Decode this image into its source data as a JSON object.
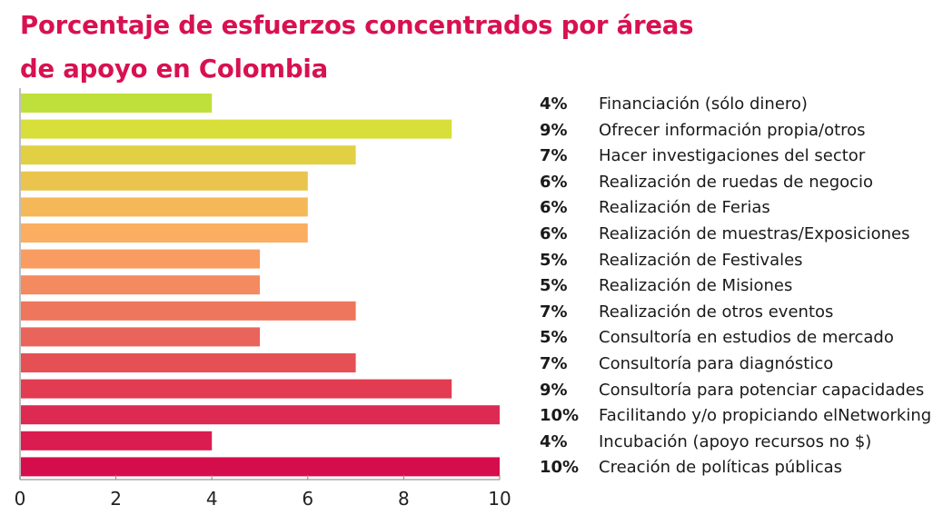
{
  "chart_data": {
    "type": "bar",
    "orientation": "horizontal",
    "title": "Porcentaje de esfuerzos concentrados por áreas de apoyo en Colombia",
    "title_lines": [
      "Porcentaje de esfuerzos concentrados por áreas",
      "de apoyo en Colombia"
    ],
    "xlabel": "",
    "ylabel": "",
    "xlim": [
      0,
      10
    ],
    "xticks": [
      0,
      2,
      4,
      6,
      8,
      10
    ],
    "grid": false,
    "legend_position": "right",
    "categories": [
      "Financiación (sólo dinero)",
      "Ofrecer información propia/otros",
      "Hacer investigaciones del sector",
      "Realización de ruedas de negocio",
      "Realización de Ferias",
      "Realización de muestras/Exposiciones",
      "Realización de Festivales",
      "Realización de Misiones",
      "Realización de otros eventos",
      "Consultoría en estudios de mercado",
      "Consultoría para diagnóstico",
      "Consultoría para potenciar capacidades",
      "Facilitando y/o propiciando elNetworking",
      "Incubación (apoyo recursos no $)",
      "Creación de políticas públicas"
    ],
    "values": [
      4,
      9,
      7,
      6,
      6,
      6,
      5,
      5,
      7,
      5,
      7,
      9,
      10,
      4,
      10
    ],
    "value_labels": [
      "4%",
      "9%",
      "7%",
      "6%",
      "6%",
      "6%",
      "5%",
      "5%",
      "7%",
      "5%",
      "7%",
      "9%",
      "10%",
      "4%",
      "10%"
    ],
    "colors": [
      "#bfe03a",
      "#d8de3a",
      "#e2d044",
      "#e9c44e",
      "#f4b858",
      "#fbae62",
      "#f89c62",
      "#f38a60",
      "#ee765c",
      "#e9645a",
      "#e55054",
      "#e13c51",
      "#dd2a52",
      "#da1c50",
      "#d60d4c"
    ]
  },
  "theme": {
    "title_color": "#d81150",
    "axis_color": "#aaaaaa"
  }
}
